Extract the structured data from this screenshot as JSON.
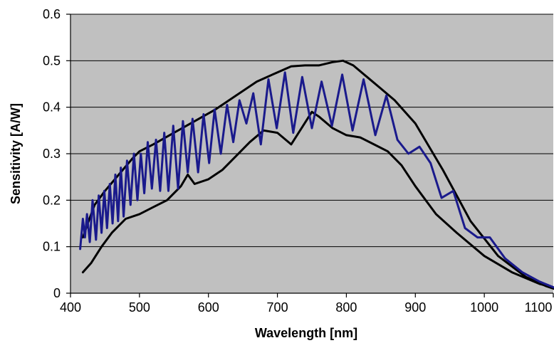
{
  "chart_data": {
    "type": "line",
    "title": "",
    "xlabel": "Wavelength [nm]",
    "ylabel": "Sensitivity [A/W]",
    "xlim": [
      400,
      1100
    ],
    "ylim": [
      0,
      0.6
    ],
    "xticks": [
      400,
      500,
      600,
      700,
      800,
      900,
      1000,
      1100
    ],
    "xtick_labels": [
      "400",
      "500",
      "600",
      "700",
      "800",
      "900",
      "1000",
      "1100"
    ],
    "yticks": [
      0,
      0.1,
      0.2,
      0.3,
      0.4,
      0.5,
      0.6
    ],
    "ytick_labels": [
      "0",
      "0.1",
      "0.2",
      "0.3",
      "0.4",
      "0.5",
      "0.6"
    ],
    "grid": "horizontal",
    "plot_background": "#c0c0c0",
    "series": [
      {
        "color": "#000000",
        "role": "upper envelope",
        "x": [
          418,
          425,
          435,
          450,
          470,
          490,
          500,
          520,
          550,
          580,
          610,
          640,
          670,
          700,
          720,
          740,
          760,
          780,
          795,
          810,
          830,
          850,
          870,
          900,
          940,
          980,
          1020,
          1060,
          1090,
          1110
        ],
        "y": [
          0.12,
          0.15,
          0.19,
          0.22,
          0.255,
          0.29,
          0.305,
          0.32,
          0.345,
          0.37,
          0.395,
          0.425,
          0.455,
          0.475,
          0.488,
          0.49,
          0.49,
          0.497,
          0.5,
          0.49,
          0.465,
          0.44,
          0.415,
          0.365,
          0.265,
          0.155,
          0.08,
          0.035,
          0.015,
          0.005
        ]
      },
      {
        "color": "#000000",
        "role": "lower envelope",
        "x": [
          418,
          430,
          445,
          460,
          480,
          500,
          520,
          540,
          560,
          570,
          580,
          600,
          620,
          640,
          660,
          680,
          700,
          720,
          735,
          750,
          760,
          780,
          800,
          820,
          840,
          860,
          880,
          900,
          930,
          960,
          1000,
          1040,
          1080,
          1110
        ],
        "y": [
          0.045,
          0.065,
          0.1,
          0.13,
          0.16,
          0.17,
          0.185,
          0.2,
          0.23,
          0.255,
          0.235,
          0.245,
          0.265,
          0.295,
          0.325,
          0.35,
          0.345,
          0.32,
          0.355,
          0.39,
          0.38,
          0.355,
          0.34,
          0.335,
          0.32,
          0.305,
          0.275,
          0.23,
          0.17,
          0.13,
          0.08,
          0.045,
          0.02,
          0.008
        ]
      },
      {
        "color": "#1a1a8c",
        "role": "measured sensitivity",
        "x": [
          414,
          418,
          421,
          424,
          428,
          432,
          437,
          441,
          445,
          449,
          453,
          457,
          461,
          465,
          469,
          473,
          477,
          482,
          487,
          492,
          497,
          502,
          507,
          512,
          518,
          524,
          530,
          536,
          542,
          549,
          556,
          563,
          570,
          577,
          585,
          593,
          601,
          609,
          618,
          627,
          636,
          645,
          655,
          665,
          676,
          687,
          699,
          711,
          723,
          736,
          750,
          764,
          779,
          794,
          809,
          825,
          842,
          858,
          874,
          890,
          906,
          922,
          938,
          955,
          972,
          990,
          1008,
          1030,
          1055,
          1080,
          1105,
          1115
        ],
        "y": [
          0.095,
          0.16,
          0.12,
          0.17,
          0.11,
          0.2,
          0.115,
          0.21,
          0.13,
          0.22,
          0.14,
          0.235,
          0.15,
          0.255,
          0.155,
          0.27,
          0.165,
          0.285,
          0.19,
          0.3,
          0.2,
          0.3,
          0.215,
          0.325,
          0.225,
          0.33,
          0.22,
          0.345,
          0.22,
          0.36,
          0.225,
          0.37,
          0.26,
          0.375,
          0.26,
          0.385,
          0.28,
          0.395,
          0.3,
          0.405,
          0.325,
          0.415,
          0.365,
          0.43,
          0.32,
          0.46,
          0.355,
          0.475,
          0.345,
          0.465,
          0.355,
          0.455,
          0.36,
          0.47,
          0.35,
          0.46,
          0.34,
          0.425,
          0.33,
          0.3,
          0.315,
          0.28,
          0.205,
          0.22,
          0.14,
          0.12,
          0.12,
          0.075,
          0.045,
          0.025,
          0.01,
          0.005
        ]
      }
    ]
  }
}
